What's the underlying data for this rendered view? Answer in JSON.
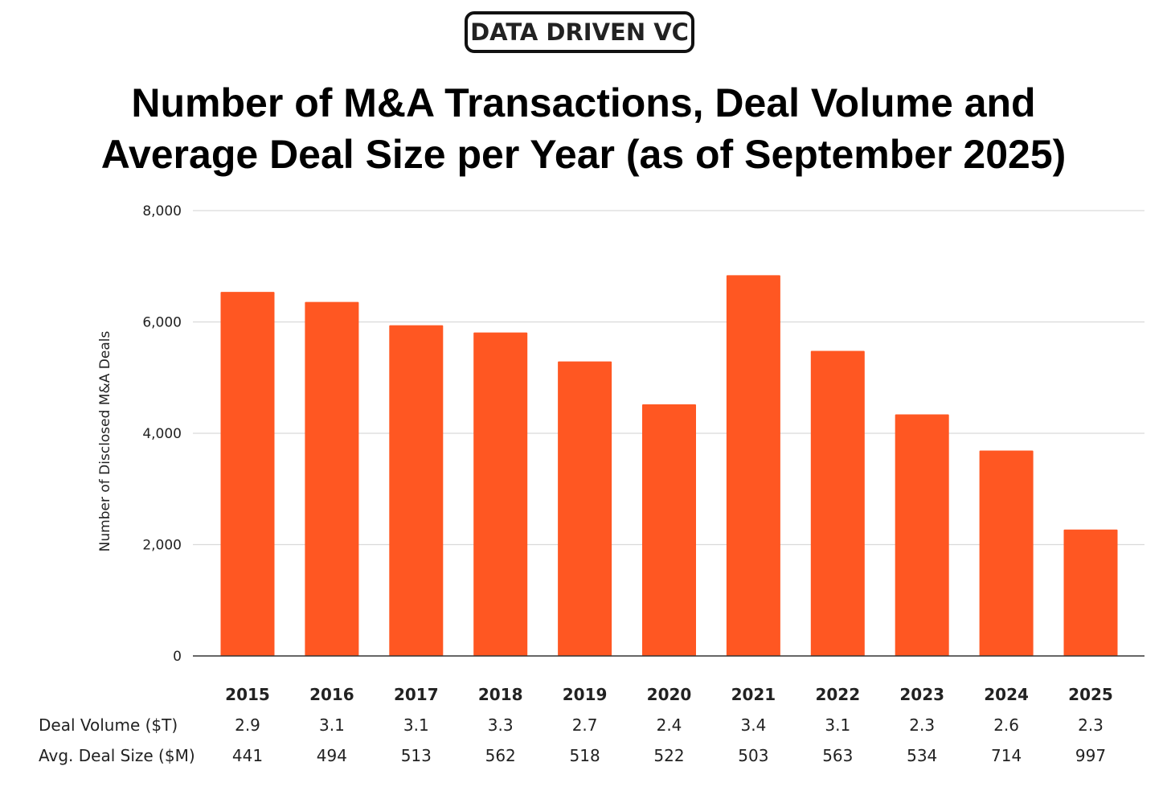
{
  "brand": "DATA DRIVEN VC",
  "title_line1": "Number of M&A Transactions, Deal Volume and",
  "title_line2": "Average Deal Size per Year (as of September 2025)",
  "colors": {
    "bar": "#FF5722",
    "grid": "#d9d9d9",
    "axis": "#333333"
  },
  "chart_data": {
    "type": "bar",
    "title": "Number of M&A Transactions, Deal Volume and Average Deal Size per Year (as of September 2025)",
    "ylabel": "Number of Disclosed M&A Deals",
    "xlabel": "",
    "ylim": [
      0,
      8000
    ],
    "yticks": [
      0,
      2000,
      4000,
      6000,
      8000
    ],
    "ytick_labels": [
      "0",
      "2,000",
      "4,000",
      "6,000",
      "8,000"
    ],
    "grid": true,
    "categories": [
      "2015",
      "2016",
      "2017",
      "2018",
      "2019",
      "2020",
      "2021",
      "2022",
      "2023",
      "2024",
      "2025"
    ],
    "values": [
      6540,
      6360,
      5940,
      5810,
      5290,
      4520,
      6840,
      5480,
      4340,
      3690,
      2270
    ],
    "table_rows": [
      {
        "label": "Deal Volume ($T)",
        "values": [
          "2.9",
          "3.1",
          "3.1",
          "3.3",
          "2.7",
          "2.4",
          "3.4",
          "3.1",
          "2.3",
          "2.6",
          "2.3"
        ]
      },
      {
        "label": "Avg. Deal Size ($M)",
        "values": [
          "441",
          "494",
          "513",
          "562",
          "518",
          "522",
          "503",
          "563",
          "534",
          "714",
          "997"
        ]
      }
    ]
  }
}
